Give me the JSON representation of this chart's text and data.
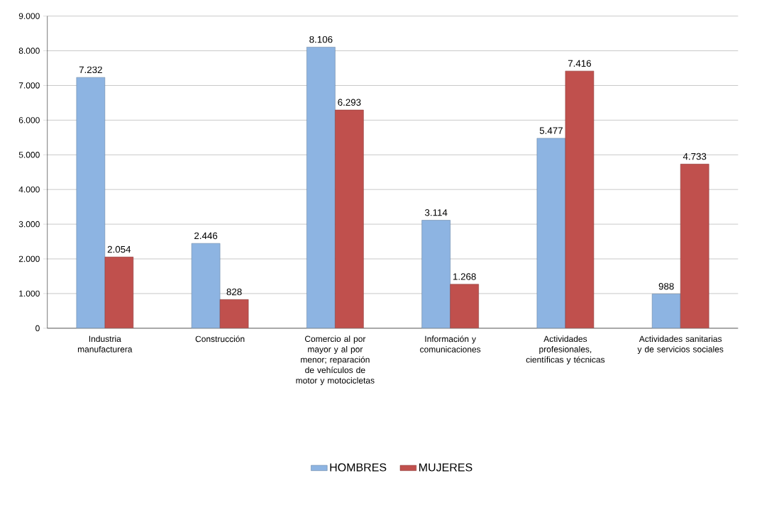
{
  "chart_data": {
    "type": "bar",
    "categories": [
      "Industria manufacturera",
      "Construcción",
      "Comercio al por mayor y al por menor; reparación de vehículos de motor y motocicletas",
      "Información y comunicaciones",
      "Actividades profesionales, científicas y técnicas",
      "Actividades sanitarias y de servicios sociales"
    ],
    "series": [
      {
        "name": "HOMBRES",
        "color": "#8db4e2",
        "values": [
          7232,
          2446,
          8106,
          3114,
          5477,
          988
        ],
        "value_labels": [
          "7.232",
          "2.446",
          "8.106",
          "3.114",
          "5.477",
          "988"
        ]
      },
      {
        "name": "MUJERES",
        "color": "#c0504d",
        "values": [
          2054,
          828,
          6293,
          1268,
          7416,
          4733
        ],
        "value_labels": [
          "2.054",
          "828",
          "6.293",
          "1.268",
          "7.416",
          "4.733"
        ]
      }
    ],
    "ylim": [
      0,
      9000
    ],
    "yticks": [
      {
        "value": 0,
        "label": "0"
      },
      {
        "value": 1000,
        "label": "1.000"
      },
      {
        "value": 2000,
        "label": "2.000"
      },
      {
        "value": 3000,
        "label": "3.000"
      },
      {
        "value": 4000,
        "label": "4.000"
      },
      {
        "value": 5000,
        "label": "5.000"
      },
      {
        "value": 6000,
        "label": "6.000"
      },
      {
        "value": 7000,
        "label": "7.000"
      },
      {
        "value": 8000,
        "label": "8.000"
      },
      {
        "value": 9000,
        "label": "9.000"
      }
    ],
    "grid": "y",
    "legend": "bottom"
  }
}
